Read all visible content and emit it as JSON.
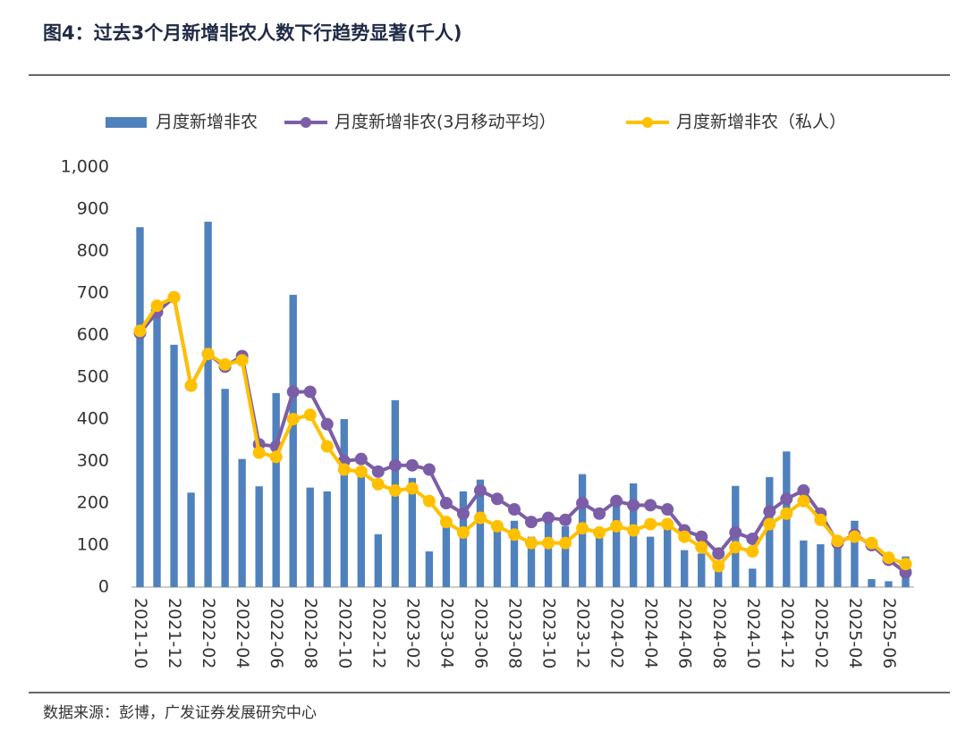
{
  "chart_data": {
    "type": "bar-line",
    "title": "图4：过去3个月新增非农人数下行趋势显著(千人)",
    "source": "数据来源：彭博，广发证券发展研究中心",
    "categories": [
      "2021-10",
      null,
      "2021-12",
      null,
      "2022-02",
      null,
      "2022-04",
      null,
      "2022-06",
      null,
      "2022-08",
      null,
      "2022-10",
      null,
      "2022-12",
      null,
      "2023-02",
      null,
      "2023-04",
      null,
      "2023-06",
      null,
      "2023-08",
      null,
      "2023-10",
      null,
      "2023-12",
      null,
      "2024-02",
      null,
      "2024-04",
      null,
      "2024-06",
      null,
      "2024-08",
      null,
      "2024-10",
      null,
      "2024-12",
      null,
      "2025-02",
      null,
      "2025-04",
      null,
      "2025-06",
      null
    ],
    "series": [
      {
        "name": "月度新增非农",
        "type": "bar",
        "color": "#4f81bd",
        "values": [
          857,
          650,
          577,
          225,
          870,
          472,
          305,
          240,
          462,
          696,
          237,
          228,
          400,
          280,
          126,
          445,
          260,
          85,
          160,
          228,
          256,
          150,
          158,
          120,
          165,
          145,
          269,
          140,
          200,
          247,
          120,
          150,
          88,
          80,
          60,
          241,
          44,
          262,
          323,
          111,
          102,
          120,
          158,
          19,
          14,
          73
        ]
      },
      {
        "name": "月度新增非农(3月移动平均）",
        "type": "line",
        "color": "#7b5ea7",
        "values": [
          605,
          655,
          690,
          480,
          555,
          525,
          550,
          340,
          335,
          465,
          465,
          388,
          300,
          305,
          275,
          290,
          290,
          280,
          200,
          175,
          230,
          210,
          185,
          155,
          165,
          160,
          200,
          175,
          205,
          195,
          195,
          185,
          135,
          120,
          80,
          130,
          115,
          180,
          210,
          230,
          175,
          105,
          125,
          100,
          65,
          35
        ]
      },
      {
        "name": "月度新增非农（私人）",
        "type": "line",
        "color": "#ffc000",
        "values": [
          610,
          670,
          690,
          480,
          555,
          530,
          540,
          320,
          310,
          400,
          410,
          335,
          280,
          275,
          245,
          230,
          235,
          205,
          155,
          130,
          165,
          145,
          125,
          105,
          105,
          105,
          140,
          130,
          145,
          135,
          150,
          150,
          120,
          95,
          50,
          95,
          85,
          150,
          175,
          205,
          160,
          110,
          120,
          105,
          70,
          55
        ]
      }
    ],
    "ylim": [
      0,
      1000
    ],
    "yticks": [
      0,
      100,
      200,
      300,
      400,
      500,
      600,
      700,
      800,
      900,
      {
        "value": 1000,
        "label": "1,000"
      }
    ],
    "grid": false,
    "legend": "top"
  }
}
